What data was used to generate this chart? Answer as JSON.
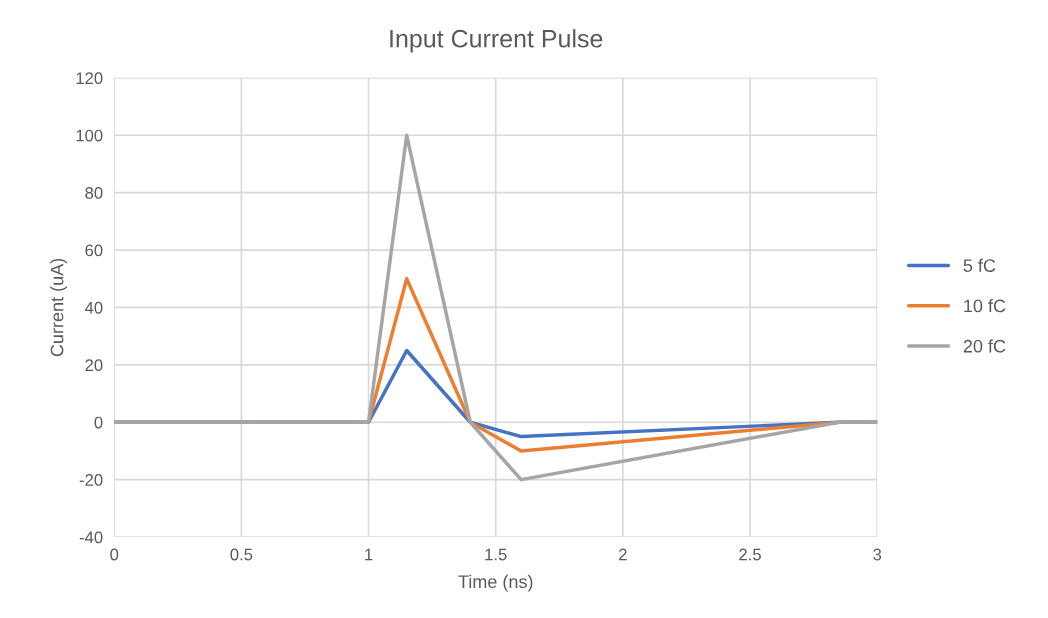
{
  "chart_data": {
    "type": "line",
    "title": "Input Current Pulse",
    "xlabel": "Time (ns)",
    "ylabel": "Current (uA)",
    "x": [
      0,
      1,
      1.15,
      1.4,
      1.6,
      2.85,
      3
    ],
    "series": [
      {
        "name": "5 fC",
        "color": "#4472c4",
        "values": [
          0,
          0,
          25,
          0,
          -5,
          0,
          0
        ]
      },
      {
        "name": "10 fC",
        "color": "#ed7d31",
        "values": [
          0,
          0,
          50,
          0,
          -10,
          0,
          0
        ]
      },
      {
        "name": "20 fC",
        "color": "#a5a5a5",
        "values": [
          0,
          0,
          100,
          0,
          -20,
          0,
          0
        ]
      }
    ],
    "xlim": [
      0,
      3
    ],
    "xticks": [
      0,
      0.5,
      1,
      1.5,
      2,
      2.5,
      3
    ],
    "ylim": [
      -40,
      120
    ],
    "yticks": [
      -40,
      -20,
      0,
      20,
      40,
      60,
      80,
      100,
      120
    ],
    "grid": true,
    "legend": "right",
    "marker": "none",
    "line_style": "solid"
  }
}
